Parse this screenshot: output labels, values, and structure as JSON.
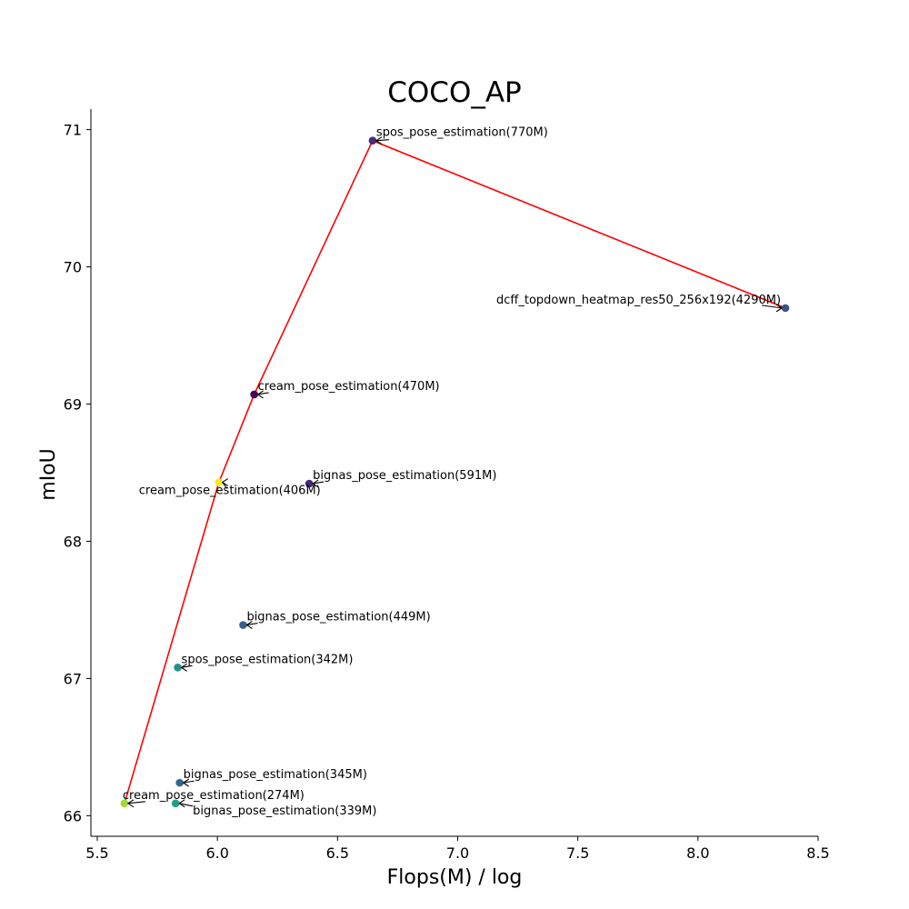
{
  "chart_data": {
    "type": "scatter",
    "title": "COCO_AP",
    "xlabel": "Flops(M) / log",
    "ylabel": "mIoU",
    "xlim": [
      5.5,
      8.5
    ],
    "ylim": [
      65.85,
      71.15
    ],
    "xticks": [
      5.5,
      6.0,
      6.5,
      7.0,
      7.5,
      8.0,
      8.5
    ],
    "xtick_labels": [
      "5.5",
      "6.0",
      "6.5",
      "7.0",
      "7.5",
      "8.0",
      "8.5"
    ],
    "yticks": [
      66,
      67,
      68,
      69,
      70,
      71
    ],
    "ytick_labels": [
      "66",
      "67",
      "68",
      "69",
      "70",
      "71"
    ],
    "grid": false,
    "points": [
      {
        "label": "spos_pose_estimation(770M)",
        "x": 6.646,
        "y": 70.92,
        "color": "#472c7a"
      },
      {
        "label": "dcff_topdown_heatmap_res50_256x192(4290M)",
        "x": 8.364,
        "y": 69.7,
        "color": "#3b528b"
      },
      {
        "label": "cream_pose_estimation(470M)",
        "x": 6.153,
        "y": 69.07,
        "color": "#440154"
      },
      {
        "label": "bignas_pose_estimation(591M)",
        "x": 6.382,
        "y": 68.42,
        "color": "#482576"
      },
      {
        "label": "cream_pose_estimation(406M)",
        "x": 6.006,
        "y": 68.43,
        "color": "#fde725"
      },
      {
        "label": "bignas_pose_estimation(449M)",
        "x": 6.107,
        "y": 67.39,
        "color": "#355f8d"
      },
      {
        "label": "spos_pose_estimation(342M)",
        "x": 5.835,
        "y": 67.08,
        "color": "#21918c"
      },
      {
        "label": "bignas_pose_estimation(345M)",
        "x": 5.843,
        "y": 66.24,
        "color": "#31688e"
      },
      {
        "label": "cream_pose_estimation(274M)",
        "x": 5.613,
        "y": 66.09,
        "color": "#a0da39"
      },
      {
        "label": "bignas_pose_estimation(339M)",
        "x": 5.826,
        "y": 66.09,
        "color": "#1fa187"
      }
    ],
    "pareto_front": [
      {
        "x": 5.613,
        "y": 66.09
      },
      {
        "x": 6.006,
        "y": 68.43
      },
      {
        "x": 6.153,
        "y": 69.07
      },
      {
        "x": 6.646,
        "y": 70.92
      },
      {
        "x": 8.364,
        "y": 69.7
      }
    ],
    "pareto_color": "#ff0000"
  }
}
